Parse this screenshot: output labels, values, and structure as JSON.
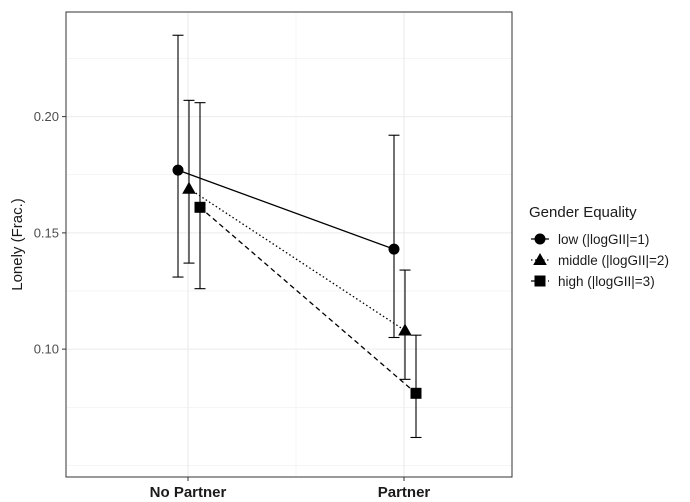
{
  "chart_data": {
    "type": "line",
    "categories": [
      "No Partner",
      "Partner"
    ],
    "ylabel": "Lonely (Frac.)",
    "xlabel": "",
    "ylim": [
      0.045,
      0.245
    ],
    "yticks": [
      0.1,
      0.15,
      0.2
    ],
    "ytick_labels": [
      "0.10",
      "0.15",
      "0.20"
    ],
    "grid": true,
    "legend": {
      "title": "Gender Equality",
      "placement": "right"
    },
    "series": [
      {
        "name": "low (|logGII|=1)",
        "marker": "circle",
        "linestyle": "solid",
        "values": [
          0.177,
          0.143
        ],
        "lower": [
          0.131,
          0.105
        ],
        "upper": [
          0.235,
          0.192
        ]
      },
      {
        "name": "middle (|logGII|=2)",
        "marker": "triangle",
        "linestyle": "dotted",
        "values": [
          0.169,
          0.108
        ],
        "lower": [
          0.137,
          0.087
        ],
        "upper": [
          0.207,
          0.134
        ]
      },
      {
        "name": "high (|logGII|=3)",
        "marker": "square",
        "linestyle": "dashed",
        "values": [
          0.161,
          0.081
        ],
        "lower": [
          0.126,
          0.062
        ],
        "upper": [
          0.206,
          0.106
        ]
      }
    ]
  }
}
